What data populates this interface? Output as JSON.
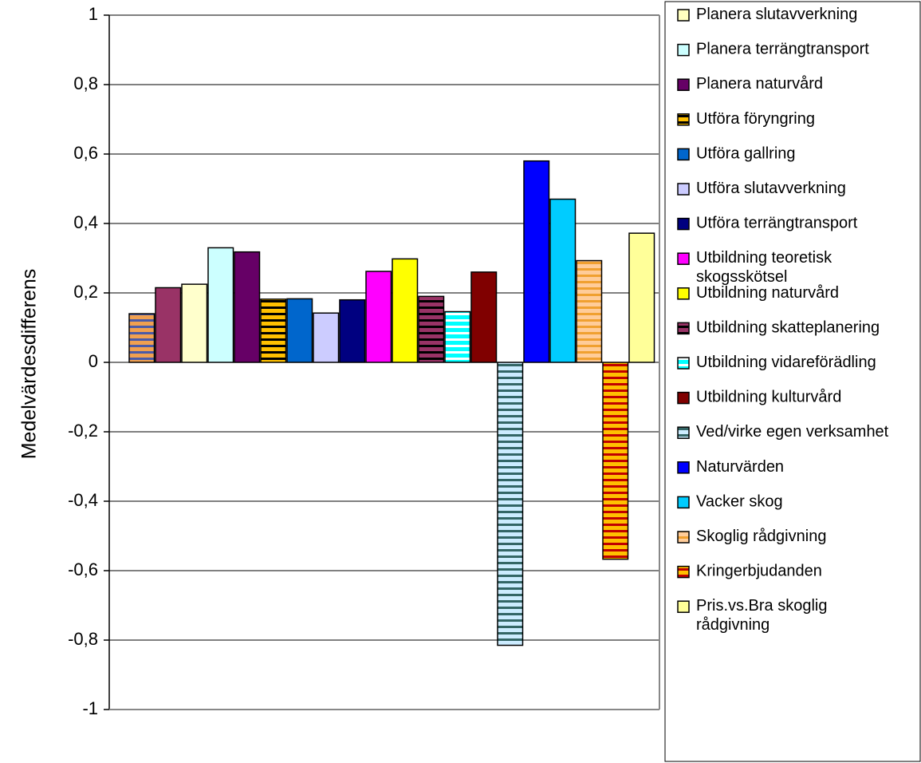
{
  "chart_data": {
    "type": "bar",
    "title": "",
    "xlabel": "",
    "ylabel": "Medelvärdesdifferens",
    "ylim": [
      -1,
      1
    ],
    "yticks": [
      {
        "value": 1,
        "label": "1"
      },
      {
        "value": 0.8,
        "label": "0,8"
      },
      {
        "value": 0.6,
        "label": "0,6"
      },
      {
        "value": 0.4,
        "label": "0,4"
      },
      {
        "value": 0.2,
        "label": "0,2"
      },
      {
        "value": 0,
        "label": "0"
      },
      {
        "value": -0.2,
        "label": "-0,2"
      },
      {
        "value": -0.4,
        "label": "-0,4"
      },
      {
        "value": -0.6,
        "label": "-0,6"
      },
      {
        "value": -0.8,
        "label": "-0,8"
      },
      {
        "value": -1,
        "label": "-1"
      }
    ],
    "grid": true,
    "legend_position": "right",
    "series": [
      {
        "name": "Planera slutavverkning",
        "value": 0.14,
        "color": "#F0A050",
        "pattern": "hstripe",
        "stripe_color": "#4A5AA8",
        "swatch": "#FFFFC0"
      },
      {
        "name": "",
        "value": 0.215,
        "color": "#993366",
        "pattern": "solid"
      },
      {
        "name": "",
        "value": 0.225,
        "color": "#FFFFCC",
        "pattern": "solid"
      },
      {
        "name": "Planera terrängtransport",
        "value": 0.33,
        "color": "#CCFFFF",
        "pattern": "solid"
      },
      {
        "name": "Planera naturvård",
        "value": 0.318,
        "color": "#660066",
        "pattern": "solid"
      },
      {
        "name": "Utföra föryngring",
        "value": 0.182,
        "color": "#FFC000",
        "pattern": "hstripe",
        "stripe_color": "#000000"
      },
      {
        "name": "Utföra gallring",
        "value": 0.183,
        "color": "#0066CC",
        "pattern": "solid"
      },
      {
        "name": "Utföra slutavverkning",
        "value": 0.142,
        "color": "#CCCCFF",
        "pattern": "solid"
      },
      {
        "name": "Utföra terrängtransport",
        "value": 0.18,
        "color": "#000080",
        "pattern": "solid"
      },
      {
        "name": "Utbildning teoretisk skogsskötsel",
        "value": 0.262,
        "color": "#FF00FF",
        "pattern": "solid"
      },
      {
        "name": "Utbildning naturvård",
        "value": 0.298,
        "color": "#FFFF00",
        "pattern": "solid"
      },
      {
        "name": "Utbildning skatteplanering",
        "value": 0.19,
        "color": "#993366",
        "pattern": "hstripe",
        "stripe_color": "#000000"
      },
      {
        "name": "Utbildning vidareförädling",
        "value": 0.146,
        "color": "#00FFFF",
        "pattern": "hstripe",
        "stripe_color": "#FFFFFF"
      },
      {
        "name": "Utbildning kulturvård",
        "value": 0.26,
        "color": "#800000",
        "pattern": "solid"
      },
      {
        "name": "Ved/virke egen verksamhet",
        "value": -0.815,
        "color": "#CCECFF",
        "pattern": "hstripe",
        "stripe_color": "#336666"
      },
      {
        "name": "Naturvärden",
        "value": 0.58,
        "color": "#0000FF",
        "pattern": "solid"
      },
      {
        "name": "Vacker skog",
        "value": 0.47,
        "color": "#00CCFF",
        "pattern": "solid"
      },
      {
        "name": "Skoglig rådgivning",
        "value": 0.293,
        "color": "#FFCC99",
        "pattern": "hstripe",
        "stripe_color": "#F0A030"
      },
      {
        "name": "Kringerbjudanden",
        "value": -0.567,
        "color": "#FFC000",
        "pattern": "hstripe",
        "stripe_color": "#C00000"
      },
      {
        "name": "Pris.vs.Bra skoglig rådgivning",
        "value": 0.372,
        "color": "#FFFF99",
        "pattern": "solid"
      }
    ]
  }
}
